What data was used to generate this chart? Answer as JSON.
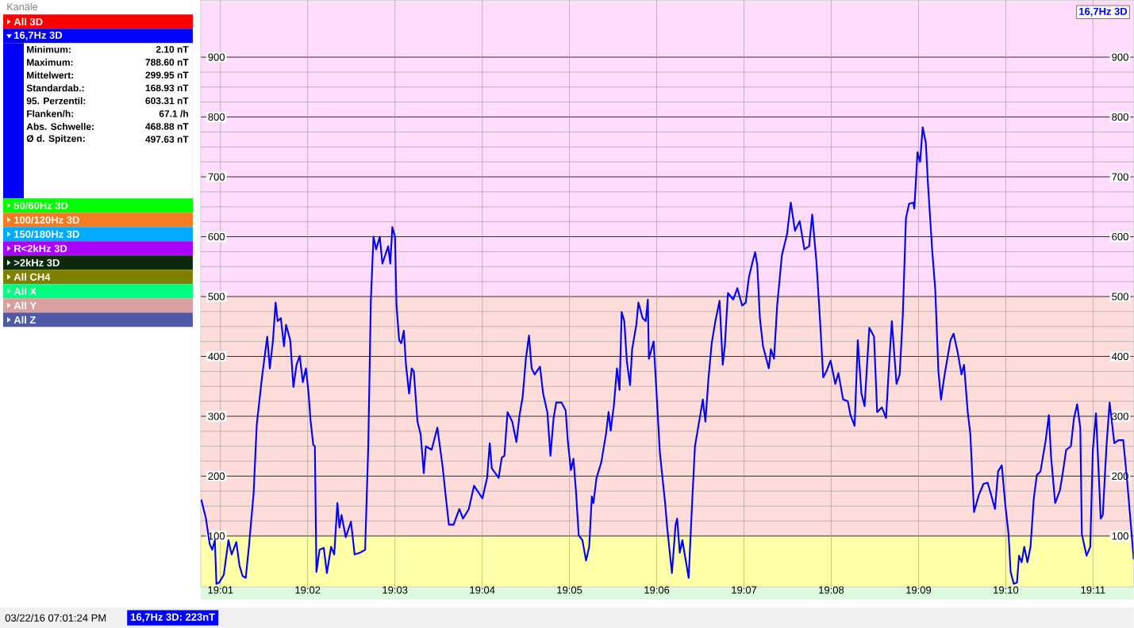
{
  "chart_data": [
    {
      "type": "other",
      "title": "Kanäle",
      "categories": [
        "All 3D",
        "16,7Hz 3D",
        "50/60Hz 3D",
        "100/120Hz 3D",
        "150/180Hz 3D",
        "R<2kHz 3D",
        ">2kHz 3D",
        "All CH4",
        "All X",
        "All Y",
        "All Z"
      ],
      "colors": [
        "#ff0000",
        "#0000ff",
        "#00ff00",
        "#f47b20",
        "#00aaff",
        "#aa00ff",
        "#0a2a0a",
        "#808000",
        "#00ff7f",
        "#d9a0a0",
        "#5058a8"
      ],
      "annotations": [
        "Minimum:",
        "2.10 nT",
        "Maximum:",
        "788.60 nT",
        "Mittelwert:",
        "299.95 nT",
        "Standardab.:",
        "168.93 nT",
        "95. Perzentil:",
        "603.31 nT",
        "Flanken/h:",
        "67.1 /h",
        "Abs. Schwelle:",
        "468.88 nT",
        "Ø d. Spitzen:",
        "497.63 nT"
      ]
    },
    {
      "type": "line",
      "title": "16,7Hz 3D",
      "annotations": [
        "03/22/16 07:01:24 PM",
        "16,7Hz 3D: 223nT"
      ],
      "xlim": [
        19.0129,
        19.1911
      ],
      "ylim": [
        15,
        995
      ],
      "y2lim": [
        15,
        995
      ],
      "xticks": [
        {
          "value": 19.01667,
          "label": "19:01"
        },
        {
          "value": 19.03333,
          "label": "19:02"
        },
        {
          "value": 19.05,
          "label": "19:03"
        },
        {
          "value": 19.06667,
          "label": "19:04"
        },
        {
          "value": 19.08333,
          "label": "19:05"
        },
        {
          "value": 19.1,
          "label": "19:06"
        },
        {
          "value": 19.11667,
          "label": "19:07"
        },
        {
          "value": 19.13333,
          "label": "19:08"
        },
        {
          "value": 19.15,
          "label": "19:09"
        },
        {
          "value": 19.16667,
          "label": "19:10"
        },
        {
          "value": 19.18333,
          "label": "19:11"
        }
      ],
      "yticks": [
        100,
        200,
        300,
        400,
        500,
        600,
        700,
        800,
        900
      ],
      "y2ticks": [
        100,
        200,
        300,
        400,
        500,
        600,
        700,
        800,
        900
      ],
      "grid": true,
      "bands": [
        {
          "axis": "y",
          "from": 15,
          "to": 100,
          "color": "#ffffa8"
        },
        {
          "axis": "y",
          "from": 100,
          "to": 500,
          "color": "#fddcda"
        },
        {
          "axis": "y",
          "from": 500,
          "to": 995,
          "color": "#ffdcfb"
        }
      ],
      "series": [
        {
          "color": "#0000ff",
          "x": [
            19.013,
            19.0139,
            19.0146,
            19.0151,
            19.0156,
            19.0159,
            19.0164,
            19.0173,
            19.0182,
            19.0188,
            19.0197,
            19.0203,
            19.0209,
            19.0215,
            19.0221,
            19.023,
            19.0236,
            19.0246,
            19.0256,
            19.0261,
            19.0267,
            19.0272,
            19.0276,
            19.0282,
            19.0288,
            19.0292,
            19.03,
            19.0306,
            19.0312,
            19.0318,
            19.0324,
            19.033,
            19.0335,
            19.0339,
            19.0344,
            19.0347,
            19.035,
            19.0356,
            19.0364,
            19.037,
            19.0378,
            19.0384,
            19.039,
            19.0394,
            19.0398,
            19.0406,
            19.0416,
            19.0423,
            19.0433,
            19.0443,
            19.0449,
            19.0454,
            19.0459,
            19.0464,
            19.0471,
            19.0476,
            19.0487,
            19.0491,
            19.0495,
            19.05,
            19.0503,
            19.0508,
            19.0512,
            19.0517,
            19.0521,
            19.0527,
            19.0532,
            19.0536,
            19.0543,
            19.0549,
            19.0555,
            19.0559,
            19.057,
            19.0581,
            19.0591,
            19.0597,
            19.0603,
            19.0612,
            19.0623,
            19.063,
            19.0641,
            19.0651,
            19.0667,
            19.0676,
            19.0681,
            19.0685,
            19.0698,
            19.0704,
            19.0709,
            19.0715,
            19.0724,
            19.0732,
            19.0738,
            19.0744,
            19.075,
            19.0756,
            19.0761,
            19.0767,
            19.0777,
            19.0783,
            19.0791,
            19.0797,
            19.0803,
            19.0808,
            19.0818,
            19.0826,
            19.083,
            19.0836,
            19.0841,
            19.0846,
            19.0851,
            19.0858,
            19.0865,
            19.0871,
            19.0876,
            19.0879,
            19.0885,
            19.0894,
            19.0903,
            19.0908,
            19.0912,
            19.0918,
            19.0924,
            19.0929,
            19.0933,
            19.0938,
            19.0943,
            19.0949,
            19.0953,
            19.0961,
            19.0965,
            19.0973,
            19.0979,
            19.0983,
            19.0985,
            19.0994,
            19.0999,
            19.1006,
            19.1016,
            19.102,
            19.1029,
            19.1036,
            19.1039,
            19.1044,
            19.1049,
            19.1061,
            19.1067,
            19.1073,
            19.1079,
            19.1088,
            19.1093,
            19.1099,
            19.1105,
            19.1112,
            19.112,
            19.1126,
            19.113,
            19.1136,
            19.1146,
            19.1154,
            19.1163,
            19.117,
            19.1176,
            19.1183,
            19.1188,
            19.1192,
            19.1197,
            19.1203,
            19.1214,
            19.1218,
            19.1224,
            19.123,
            19.1239,
            19.1249,
            19.1256,
            19.1264,
            19.1273,
            19.1282,
            19.1291,
            19.1297,
            19.1305,
            19.1312,
            19.1318,
            19.1324,
            19.1332,
            19.1341,
            19.1347,
            19.1356,
            19.1365,
            19.137,
            19.1378,
            19.1384,
            19.1391,
            19.1397,
            19.1406,
            19.1415,
            19.1421,
            19.143,
            19.1438,
            19.1443,
            19.1449,
            19.1458,
            19.1464,
            19.147,
            19.1476,
            19.1482,
            19.149,
            19.1492,
            19.1498,
            19.1503,
            19.1508,
            19.1514,
            19.1518,
            19.1526,
            19.1532,
            19.1538,
            19.1543,
            19.1549,
            19.1555,
            19.1561,
            19.1567,
            19.1575,
            19.1582,
            19.1587,
            19.1594,
            19.1599,
            19.1606,
            19.1615,
            19.1624,
            19.1632,
            19.1638,
            19.1646,
            19.1652,
            19.1659,
            19.1666,
            19.1672,
            19.1676,
            19.1682,
            19.1688,
            19.1692,
            19.1697,
            19.1702,
            19.1708,
            19.1714,
            19.172,
            19.1726,
            19.1733,
            19.1743,
            19.1749,
            19.1753,
            19.1761,
            19.177,
            19.1776,
            19.1782,
            19.1791,
            19.1797,
            19.1803,
            19.1809,
            19.1812,
            19.1821,
            19.1828,
            19.1833,
            19.1839,
            19.1848,
            19.1852,
            19.1859,
            19.1865,
            19.1874,
            19.1882,
            19.1891,
            19.1898,
            19.1906,
            19.1911
          ],
          "values": [
            161,
            129,
            87,
            77,
            93,
            20,
            22,
            35,
            93,
            69,
            90,
            51,
            33,
            30,
            82,
            171,
            286,
            365,
            433,
            380,
            427,
            490,
            459,
            464,
            417,
            453,
            427,
            349,
            386,
            401,
            357,
            380,
            338,
            291,
            252,
            250,
            40,
            77,
            80,
            38,
            82,
            69,
            155,
            114,
            135,
            98,
            124,
            69,
            72,
            77,
            250,
            495,
            600,
            579,
            600,
            555,
            584,
            555,
            616,
            600,
            485,
            427,
            422,
            443,
            386,
            338,
            380,
            375,
            291,
            270,
            205,
            250,
            244,
            281,
            216,
            166,
            119,
            119,
            145,
            129,
            145,
            184,
            163,
            197,
            255,
            213,
            197,
            231,
            234,
            307,
            291,
            257,
            302,
            333,
            396,
            435,
            380,
            370,
            383,
            338,
            307,
            234,
            297,
            323,
            323,
            310,
            260,
            210,
            229,
            171,
            101,
            93,
            59,
            82,
            166,
            155,
            197,
            223,
            270,
            307,
            276,
            317,
            380,
            344,
            474,
            459,
            391,
            352,
            412,
            453,
            490,
            464,
            459,
            495,
            396,
            425,
            349,
            239,
            155,
            114,
            38,
            119,
            129,
            72,
            93,
            30,
            145,
            250,
            281,
            328,
            291,
            365,
            422,
            459,
            493,
            386,
            417,
            506,
            495,
            514,
            485,
            490,
            532,
            558,
            574,
            553,
            464,
            417,
            380,
            412,
            396,
            485,
            569,
            605,
            657,
            610,
            626,
            579,
            584,
            637,
            558,
            459,
            365,
            375,
            393,
            354,
            372,
            328,
            325,
            302,
            284,
            427,
            338,
            317,
            448,
            433,
            307,
            315,
            297,
            375,
            459,
            354,
            370,
            469,
            631,
            655,
            657,
            647,
            741,
            725,
            783,
            757,
            689,
            579,
            511,
            375,
            328,
            365,
            396,
            427,
            438,
            406,
            370,
            386,
            307,
            270,
            140,
            168,
            187,
            189,
            171,
            145,
            208,
            218,
            150,
            103,
            40,
            20,
            22,
            67,
            56,
            82,
            56,
            82,
            161,
            202,
            208,
            260,
            302,
            234,
            155,
            176,
            208,
            244,
            250,
            297,
            320,
            281,
            103,
            67,
            82,
            244,
            305,
            129,
            135,
            250,
            323,
            255,
            260,
            260,
            197,
            114,
            61
          ]
        }
      ]
    }
  ]
}
